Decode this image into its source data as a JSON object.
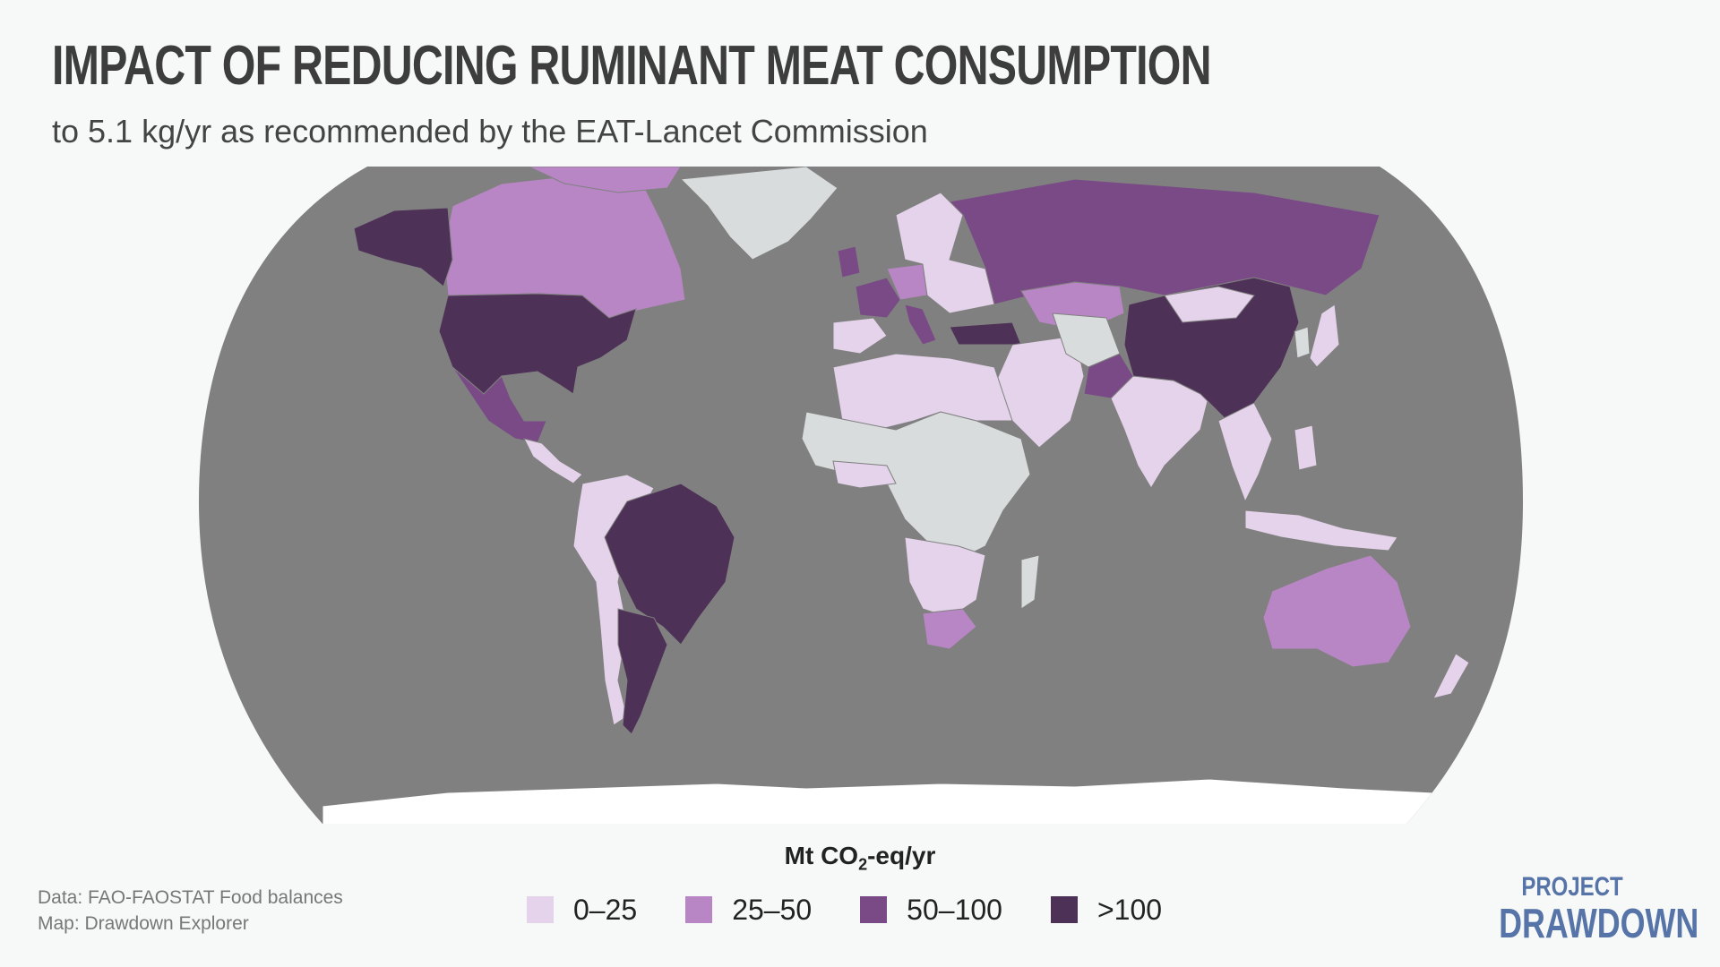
{
  "title": "IMPACT OF REDUCING RUMINANT MEAT CONSUMPTION",
  "subtitle": "to 5.1 kg/yr as recommended by the EAT-Lancet Commission",
  "legend": {
    "title_main": "Mt CO",
    "title_sub": "2",
    "title_tail": "-eq/yr",
    "items": [
      {
        "label": "0–25",
        "color": "#e4d3ea"
      },
      {
        "label": "25–50",
        "color": "#b886c4"
      },
      {
        "label": "50–100",
        "color": "#7a4a86"
      },
      {
        "label": ">100",
        "color": "#4e3156"
      }
    ]
  },
  "colors": {
    "ocean": "#808080",
    "no_data": "#d9dcdd",
    "ice": "#ffffff",
    "background": "#f7f8f8"
  },
  "credits": {
    "data": "Data: FAO-FAOSTAT Food balances",
    "map": "Map: Drawdown Explorer"
  },
  "logo": {
    "line1": "PROJECT",
    "line2": "DRAWDOWN"
  },
  "regions": {
    "greater_than_100": [
      "United States",
      "Brazil",
      "Argentina",
      "China",
      "Alaska",
      "Turkey"
    ],
    "50_to_100": [
      "Russia",
      "Mexico",
      "Pakistan",
      "France",
      "United Kingdom",
      "Italy"
    ],
    "25_to_50": [
      "Canada",
      "Australia",
      "South Africa",
      "Kazakhstan",
      "Germany"
    ],
    "0_to_25": [
      "India",
      "Spain",
      "Colombia",
      "Peru",
      "Bolivia",
      "Chile",
      "Iran",
      "Saudi Arabia",
      "Egypt",
      "Scandinavia",
      "Southeast Asia",
      "Indonesia",
      "Angola",
      "New Zealand"
    ],
    "no_data": [
      "Greenland",
      "Sahara",
      "Central Africa",
      "East Africa",
      "Madagascar",
      "Afghanistan",
      "Korea"
    ]
  }
}
